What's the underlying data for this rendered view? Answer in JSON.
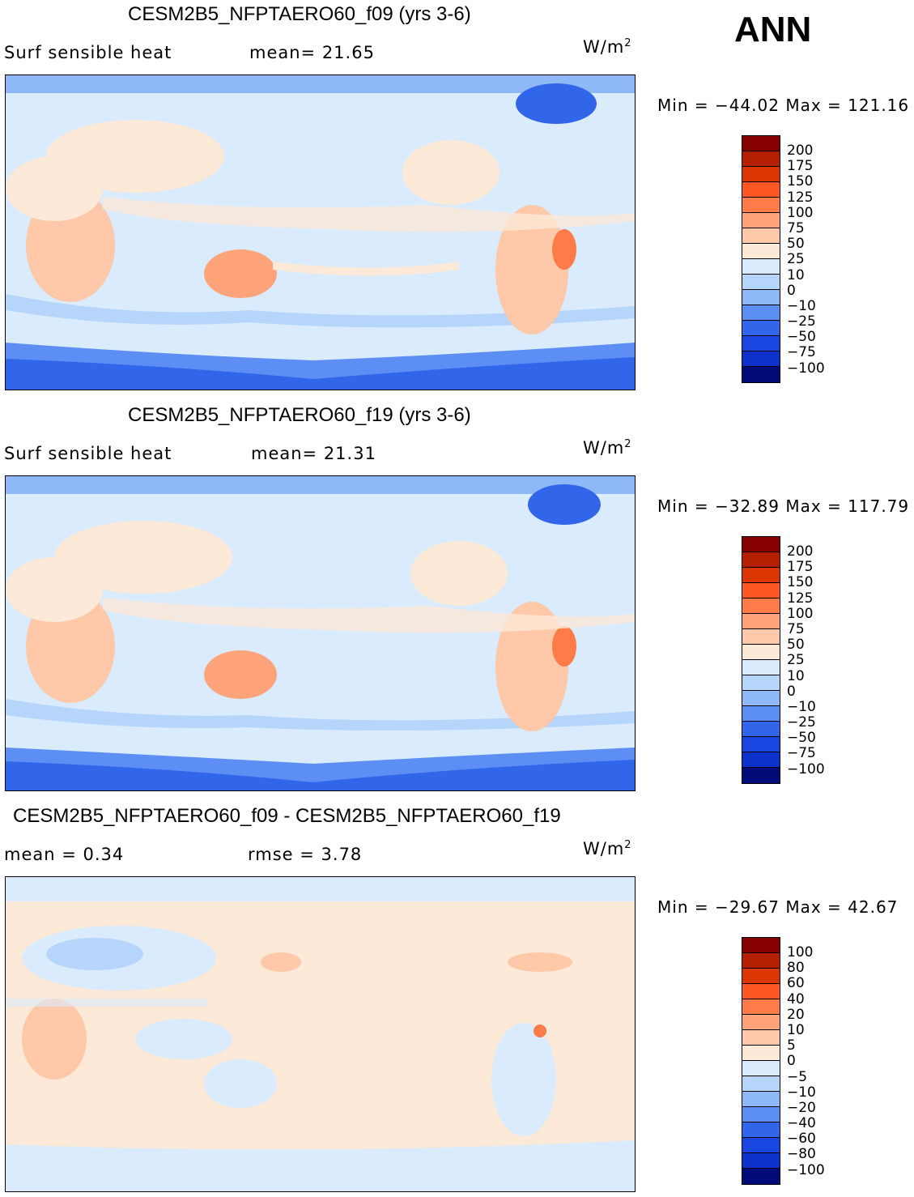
{
  "season": "ANN",
  "units_text": "W/m",
  "units_sup": "2",
  "panels": [
    {
      "title": "CESM2B5_NFPTAERO60_f09 (yrs 3-6)",
      "left_label": "Surf  sensible  heat",
      "mid_label": "mean=   21.65",
      "minmax": "Min  =  −44.02  Max  =  121.16",
      "levels": [
        "200",
        "175",
        "150",
        "125",
        "100",
        "75",
        "50",
        "25",
        "10",
        "0",
        "−10",
        "−25",
        "−50",
        "−75",
        "−100"
      ]
    },
    {
      "title": "CESM2B5_NFPTAERO60_f19 (yrs 3-6)",
      "left_label": "Surf  sensible  heat",
      "mid_label": "mean=   21.31",
      "minmax": "Min  =  −32.89  Max  =  117.79",
      "levels": [
        "200",
        "175",
        "150",
        "125",
        "100",
        "75",
        "50",
        "25",
        "10",
        "0",
        "−10",
        "−25",
        "−50",
        "−75",
        "−100"
      ]
    },
    {
      "title": "CESM2B5_NFPTAERO60_f09 - CESM2B5_NFPTAERO60_f19",
      "left_label": "mean  =     0.34",
      "mid_label": "rmse  =     3.78",
      "minmax": "Min  =  −29.67  Max  =    42.67",
      "levels": [
        "100",
        "80",
        "60",
        "40",
        "20",
        "10",
        "5",
        "0",
        "−5",
        "−10",
        "−20",
        "−40",
        "−60",
        "−80",
        "−100"
      ]
    }
  ],
  "colors": {
    "scale": [
      "#870000",
      "#b41f00",
      "#dc3700",
      "#ff5721",
      "#ff7b47",
      "#ffa37a",
      "#ffc8a8",
      "#fde9d7",
      "#d9ebfc",
      "#b5d5fb",
      "#8fb8f9",
      "#5d8ef3",
      "#3266ea",
      "#1945e0",
      "#0c31cc",
      "#0a2196",
      "#000b7a"
    ],
    "ocean_light": "#d9ebfc",
    "warm_light": "#fde9d7",
    "warm_mid": "#ffc8a8",
    "warm_strong": "#ff9f75",
    "cool_mid": "#b5d5fb",
    "cool_strong": "#8fb8f9",
    "ice": "#3266ea"
  }
}
